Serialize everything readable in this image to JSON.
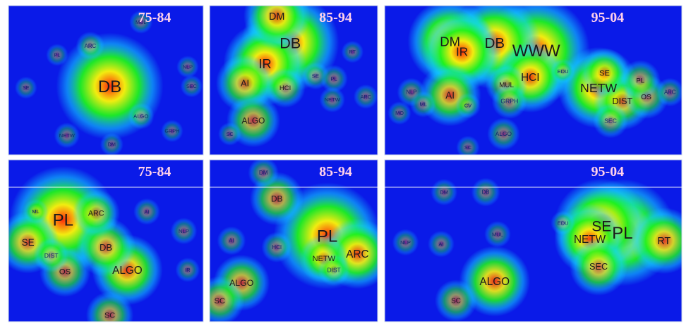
{
  "chart_data": {
    "type": "heatmap",
    "colormap": [
      "#0a1ae8",
      "#12d6ff",
      "#1ef21e",
      "#f2ec10",
      "#ff2a0a"
    ],
    "panels": [
      {
        "id": "db-75-84",
        "title": "75-84",
        "topics": [
          {
            "label": "DB",
            "x": 0.52,
            "y": 0.54,
            "heat": 1.0
          },
          {
            "label": "ARC",
            "x": 0.42,
            "y": 0.27,
            "heat": 0.08
          },
          {
            "label": "ALGO",
            "x": 0.68,
            "y": 0.74,
            "heat": 0.06
          },
          {
            "label": "NETW",
            "x": 0.3,
            "y": 0.87,
            "heat": 0.05
          },
          {
            "label": "MUL",
            "x": 0.68,
            "y": 0.11,
            "heat": 0.03
          },
          {
            "label": "DM",
            "x": 0.53,
            "y": 0.93,
            "heat": 0.03
          },
          {
            "label": "SE",
            "x": 0.09,
            "y": 0.55,
            "heat": 0.02
          },
          {
            "label": "PL",
            "x": 0.25,
            "y": 0.33,
            "heat": 0.02
          },
          {
            "label": "NLP",
            "x": 0.92,
            "y": 0.41,
            "heat": 0.02
          },
          {
            "label": "SEC",
            "x": 0.94,
            "y": 0.54,
            "heat": 0.02
          },
          {
            "label": "GRPH",
            "x": 0.84,
            "y": 0.84,
            "heat": 0.02
          }
        ]
      },
      {
        "id": "db-85-94",
        "title": "85-94",
        "topics": [
          {
            "label": "DB",
            "x": 0.48,
            "y": 0.25,
            "heat": 0.88
          },
          {
            "label": "IR",
            "x": 0.33,
            "y": 0.39,
            "heat": 0.7
          },
          {
            "label": "DM",
            "x": 0.4,
            "y": 0.07,
            "heat": 0.5
          },
          {
            "label": "AI",
            "x": 0.21,
            "y": 0.52,
            "heat": 0.4
          },
          {
            "label": "ALGO",
            "x": 0.26,
            "y": 0.77,
            "heat": 0.35
          },
          {
            "label": "HCI",
            "x": 0.45,
            "y": 0.55,
            "heat": 0.2
          },
          {
            "label": "SE",
            "x": 0.63,
            "y": 0.47,
            "heat": 0.07
          },
          {
            "label": "PL",
            "x": 0.74,
            "y": 0.49,
            "heat": 0.07
          },
          {
            "label": "NETW",
            "x": 0.73,
            "y": 0.63,
            "heat": 0.05
          },
          {
            "label": "ARC",
            "x": 0.93,
            "y": 0.61,
            "heat": 0.04
          },
          {
            "label": "RT",
            "x": 0.85,
            "y": 0.31,
            "heat": 0.02
          },
          {
            "label": "SC",
            "x": 0.12,
            "y": 0.86,
            "heat": 0.03
          }
        ]
      },
      {
        "id": "db-95-04",
        "title": "95-04",
        "topics": [
          {
            "label": "WWW",
            "x": 0.51,
            "y": 0.3,
            "heat": 1.0
          },
          {
            "label": "DB",
            "x": 0.37,
            "y": 0.25,
            "heat": 0.82
          },
          {
            "label": "DM",
            "x": 0.22,
            "y": 0.24,
            "heat": 0.72
          },
          {
            "label": "IR",
            "x": 0.26,
            "y": 0.31,
            "heat": 0.65
          },
          {
            "label": "HCI",
            "x": 0.49,
            "y": 0.48,
            "heat": 0.55
          },
          {
            "label": "AI",
            "x": 0.22,
            "y": 0.6,
            "heat": 0.45
          },
          {
            "label": "NETW",
            "x": 0.72,
            "y": 0.55,
            "heat": 0.68
          },
          {
            "label": "DIST",
            "x": 0.8,
            "y": 0.64,
            "heat": 0.4
          },
          {
            "label": "OS",
            "x": 0.88,
            "y": 0.61,
            "heat": 0.25
          },
          {
            "label": "SE",
            "x": 0.74,
            "y": 0.45,
            "heat": 0.3
          },
          {
            "label": "PL",
            "x": 0.86,
            "y": 0.5,
            "heat": 0.2
          },
          {
            "label": "MUL",
            "x": 0.41,
            "y": 0.53,
            "heat": 0.22
          },
          {
            "label": "GRPH",
            "x": 0.42,
            "y": 0.64,
            "heat": 0.15
          },
          {
            "label": "SEC",
            "x": 0.76,
            "y": 0.77,
            "heat": 0.15
          },
          {
            "label": "ALGO",
            "x": 0.4,
            "y": 0.86,
            "heat": 0.12
          },
          {
            "label": "NLP",
            "x": 0.09,
            "y": 0.58,
            "heat": 0.08
          },
          {
            "label": "ML",
            "x": 0.13,
            "y": 0.66,
            "heat": 0.06
          },
          {
            "label": "ARC",
            "x": 0.96,
            "y": 0.58,
            "heat": 0.08
          },
          {
            "label": "EDU",
            "x": 0.6,
            "y": 0.44,
            "heat": 0.05
          },
          {
            "label": "CV",
            "x": 0.28,
            "y": 0.67,
            "heat": 0.05
          },
          {
            "label": "MO",
            "x": 0.05,
            "y": 0.72,
            "heat": 0.03
          },
          {
            "label": "SC",
            "x": 0.28,
            "y": 0.95,
            "heat": 0.03
          }
        ]
      },
      {
        "id": "pl-75-84",
        "title": "75-84",
        "topics": [
          {
            "label": "PL",
            "x": 0.28,
            "y": 0.37,
            "heat": 1.0
          },
          {
            "label": "ALGO",
            "x": 0.61,
            "y": 0.68,
            "heat": 0.55
          },
          {
            "label": "SE",
            "x": 0.1,
            "y": 0.51,
            "heat": 0.45
          },
          {
            "label": "DB",
            "x": 0.5,
            "y": 0.54,
            "heat": 0.42
          },
          {
            "label": "OS",
            "x": 0.29,
            "y": 0.69,
            "heat": 0.32
          },
          {
            "label": "SC",
            "x": 0.52,
            "y": 0.96,
            "heat": 0.28
          },
          {
            "label": "ARC",
            "x": 0.45,
            "y": 0.33,
            "heat": 0.28
          },
          {
            "label": "DIST",
            "x": 0.22,
            "y": 0.59,
            "heat": 0.15
          },
          {
            "label": "AI",
            "x": 0.71,
            "y": 0.32,
            "heat": 0.06
          },
          {
            "label": "NLP",
            "x": 0.9,
            "y": 0.44,
            "heat": 0.06
          },
          {
            "label": "ML",
            "x": 0.14,
            "y": 0.32,
            "heat": 0.05
          },
          {
            "label": "IR",
            "x": 0.92,
            "y": 0.68,
            "heat": 0.04
          }
        ]
      },
      {
        "id": "pl-85-94",
        "title": "85-94",
        "topics": [
          {
            "label": "PL",
            "x": 0.7,
            "y": 0.47,
            "heat": 1.0
          },
          {
            "label": "ARC",
            "x": 0.88,
            "y": 0.58,
            "heat": 0.55
          },
          {
            "label": "NETW",
            "x": 0.68,
            "y": 0.61,
            "heat": 0.3
          },
          {
            "label": "DB",
            "x": 0.4,
            "y": 0.24,
            "heat": 0.35
          },
          {
            "label": "ALGO",
            "x": 0.19,
            "y": 0.76,
            "heat": 0.38
          },
          {
            "label": "SC",
            "x": 0.06,
            "y": 0.87,
            "heat": 0.3
          },
          {
            "label": "DM",
            "x": 0.32,
            "y": 0.08,
            "heat": 0.1
          },
          {
            "label": "AI",
            "x": 0.13,
            "y": 0.5,
            "heat": 0.08
          },
          {
            "label": "HCI",
            "x": 0.4,
            "y": 0.54,
            "heat": 0.1
          },
          {
            "label": "DIST",
            "x": 0.74,
            "y": 0.68,
            "heat": 0.12
          }
        ]
      },
      {
        "id": "pl-95-04",
        "title": "95-04",
        "topics": [
          {
            "label": "PL",
            "x": 0.8,
            "y": 0.45,
            "heat": 1.0
          },
          {
            "label": "SE",
            "x": 0.73,
            "y": 0.41,
            "heat": 0.85
          },
          {
            "label": "NETW",
            "x": 0.69,
            "y": 0.49,
            "heat": 0.55
          },
          {
            "label": "RT",
            "x": 0.94,
            "y": 0.5,
            "heat": 0.5
          },
          {
            "label": "SEC",
            "x": 0.72,
            "y": 0.66,
            "heat": 0.4
          },
          {
            "label": "ALGO",
            "x": 0.37,
            "y": 0.75,
            "heat": 0.55
          },
          {
            "label": "SC",
            "x": 0.24,
            "y": 0.87,
            "heat": 0.22
          },
          {
            "label": "DB",
            "x": 0.34,
            "y": 0.2,
            "heat": 0.08
          },
          {
            "label": "DM",
            "x": 0.2,
            "y": 0.2,
            "heat": 0.06
          },
          {
            "label": "NLP",
            "x": 0.07,
            "y": 0.51,
            "heat": 0.06
          },
          {
            "label": "AI",
            "x": 0.19,
            "y": 0.52,
            "heat": 0.06
          },
          {
            "label": "MUL",
            "x": 0.38,
            "y": 0.46,
            "heat": 0.06
          },
          {
            "label": "EDU",
            "x": 0.6,
            "y": 0.39,
            "heat": 0.04
          }
        ]
      }
    ]
  }
}
